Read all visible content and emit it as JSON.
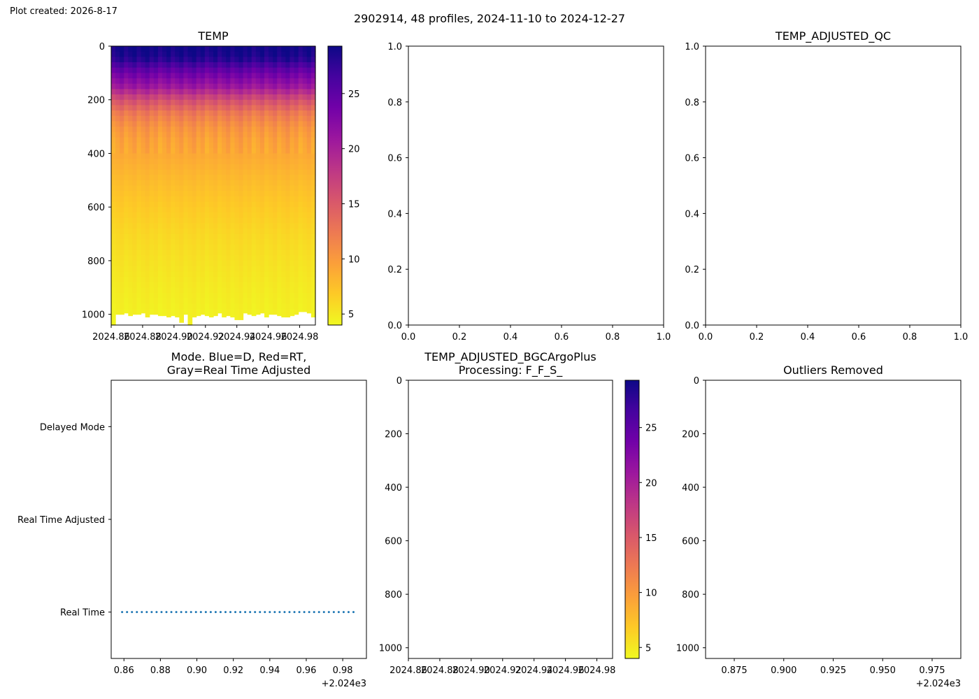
{
  "figure": {
    "created_label": "Plot created: 2026-8-17",
    "suptitle": "2902914, 48 profiles, 2024-11-10 to 2024-12-27"
  },
  "colormap": {
    "name": "plasma_r",
    "stops": [
      "#f0f921",
      "#fdca26",
      "#fb9f3a",
      "#ed7953",
      "#d8576b",
      "#bd3786",
      "#9c179e",
      "#7201a8",
      "#46039f",
      "#0d0887"
    ]
  },
  "chart_data": [
    {
      "id": "temp",
      "type": "heatmap",
      "title": "TEMP",
      "xlim": [
        2024.86,
        2024.99
      ],
      "ylim": [
        1040,
        0
      ],
      "y_inverted": true,
      "x_ticks": [
        "2024.86",
        "2024.88",
        "2024.90",
        "2024.92",
        "2024.94",
        "2024.96",
        "2024.98"
      ],
      "x_tick_values": [
        2024.86,
        2024.88,
        2024.9,
        2024.92,
        2024.94,
        2024.96,
        2024.98
      ],
      "y_ticks": [
        "0",
        "200",
        "400",
        "600",
        "800",
        "1000"
      ],
      "y_tick_values": [
        0,
        200,
        400,
        600,
        800,
        1000
      ],
      "n_profiles": 48,
      "profile_max_depth": [
        1040,
        1000,
        1000,
        995,
        1005,
        1000,
        1000,
        995,
        1010,
        1000,
        1000,
        1005,
        1005,
        1010,
        1005,
        1010,
        1030,
        1000,
        1040,
        1010,
        1005,
        1000,
        1005,
        1010,
        1005,
        995,
        1010,
        1005,
        1010,
        1020,
        1020,
        995,
        1000,
        1005,
        1000,
        995,
        1010,
        1000,
        1000,
        1005,
        1010,
        1010,
        1005,
        1000,
        990,
        990,
        995,
        1010
      ],
      "temperature_profile": {
        "depth": [
          0,
          25,
          50,
          75,
          100,
          150,
          200,
          250,
          300,
          350,
          400,
          500,
          600,
          700,
          800,
          900,
          1000,
          1040
        ],
        "temp": [
          29.2,
          29.0,
          28.0,
          26.0,
          24.0,
          21.0,
          16.0,
          12.5,
          10.5,
          9.5,
          9.0,
          7.8,
          6.8,
          6.0,
          5.4,
          4.9,
          4.5,
          4.4
        ]
      },
      "colorbar": {
        "vmin": 4,
        "vmax": 29.3,
        "ticks": [
          "5",
          "10",
          "15",
          "20",
          "25"
        ],
        "tick_values": [
          5,
          10,
          15,
          20,
          25
        ]
      }
    },
    {
      "id": "empty-top-middle",
      "type": "scatter",
      "title": "",
      "xlim": [
        0,
        1
      ],
      "ylim": [
        0,
        1
      ],
      "x_ticks": [
        "0.0",
        "0.2",
        "0.4",
        "0.6",
        "0.8",
        "1.0"
      ],
      "x_tick_values": [
        0,
        0.2,
        0.4,
        0.6,
        0.8,
        1.0
      ],
      "y_ticks": [
        "0.0",
        "0.2",
        "0.4",
        "0.6",
        "0.8",
        "1.0"
      ],
      "y_tick_values": [
        0,
        0.2,
        0.4,
        0.6,
        0.8,
        1.0
      ]
    },
    {
      "id": "temp-adjusted-qc",
      "type": "scatter",
      "title": "TEMP_ADJUSTED_QC",
      "xlim": [
        0,
        1
      ],
      "ylim": [
        0,
        1
      ],
      "x_ticks": [
        "0.0",
        "0.2",
        "0.4",
        "0.6",
        "0.8",
        "1.0"
      ],
      "x_tick_values": [
        0,
        0.2,
        0.4,
        0.6,
        0.8,
        1.0
      ],
      "y_ticks": [
        "0.0",
        "0.2",
        "0.4",
        "0.6",
        "0.8",
        "1.0"
      ],
      "y_tick_values": [
        0,
        0.2,
        0.4,
        0.6,
        0.8,
        1.0
      ]
    },
    {
      "id": "mode",
      "type": "scatter",
      "title": [
        "Mode. Blue=D, Red=RT,",
        "Gray=Real Time Adjusted"
      ],
      "xlim": [
        0.853,
        0.993
      ],
      "x_offset_label": "+2.024e3",
      "x_ticks": [
        "0.86",
        "0.88",
        "0.90",
        "0.92",
        "0.94",
        "0.96",
        "0.98"
      ],
      "x_tick_values": [
        0.86,
        0.88,
        0.9,
        0.92,
        0.94,
        0.96,
        0.98
      ],
      "ylim": [
        -0.5,
        2.5
      ],
      "y_ticks": [
        "Real Time",
        "Real Time Adjusted",
        "Delayed Mode"
      ],
      "y_tick_values": [
        0,
        1,
        2
      ],
      "series": [
        {
          "color": "#1f77b4",
          "x": [
            0.859,
            0.8617,
            0.8644,
            0.8671,
            0.8698,
            0.8725,
            0.8752,
            0.8779,
            0.8806,
            0.8833,
            0.886,
            0.8887,
            0.8914,
            0.8941,
            0.8968,
            0.8995,
            0.9022,
            0.9049,
            0.9076,
            0.9103,
            0.913,
            0.9157,
            0.9184,
            0.9211,
            0.9238,
            0.9265,
            0.9292,
            0.9319,
            0.9346,
            0.9373,
            0.94,
            0.9427,
            0.9454,
            0.9481,
            0.9508,
            0.9535,
            0.9562,
            0.9589,
            0.9616,
            0.9643,
            0.967,
            0.9697,
            0.9724,
            0.9751,
            0.9778,
            0.9805,
            0.9832,
            0.9859
          ],
          "y": [
            0,
            0,
            0,
            0,
            0,
            0,
            0,
            0,
            0,
            0,
            0,
            0,
            0,
            0,
            0,
            0,
            0,
            0,
            0,
            0,
            0,
            0,
            0,
            0,
            0,
            0,
            0,
            0,
            0,
            0,
            0,
            0,
            0,
            0,
            0,
            0,
            0,
            0,
            0,
            0,
            0,
            0,
            0,
            0,
            0,
            0,
            0,
            0
          ]
        }
      ]
    },
    {
      "id": "temp-adjusted-bgc",
      "type": "heatmap",
      "title": [
        "TEMP_ADJUSTED_BGCArgoPlus",
        "Processing: F_F_S_"
      ],
      "xlim": [
        2024.86,
        2024.99
      ],
      "ylim": [
        1040,
        0
      ],
      "y_inverted": true,
      "x_ticks": [
        "2024.86",
        "2024.88",
        "2024.90",
        "2024.92",
        "2024.94",
        "2024.96",
        "2024.98"
      ],
      "x_tick_values": [
        2024.86,
        2024.88,
        2024.9,
        2024.92,
        2024.94,
        2024.96,
        2024.98
      ],
      "y_ticks": [
        "0",
        "200",
        "400",
        "600",
        "800",
        "1000"
      ],
      "y_tick_values": [
        0,
        200,
        400,
        600,
        800,
        1000
      ],
      "colorbar": {
        "vmin": 4,
        "vmax": 29.3,
        "ticks": [
          "5",
          "10",
          "15",
          "20",
          "25"
        ],
        "tick_values": [
          5,
          10,
          15,
          20,
          25
        ]
      }
    },
    {
      "id": "outliers-removed",
      "type": "scatter",
      "title": "Outliers Removed",
      "xlim": [
        0.8605,
        0.9895
      ],
      "x_offset_label": "+2.024e3",
      "x_ticks": [
        "0.875",
        "0.900",
        "0.925",
        "0.950",
        "0.975"
      ],
      "x_tick_values": [
        0.875,
        0.9,
        0.925,
        0.95,
        0.975
      ],
      "ylim": [
        1040,
        0
      ],
      "y_inverted": true,
      "y_ticks": [
        "0",
        "200",
        "400",
        "600",
        "800",
        "1000"
      ],
      "y_tick_values": [
        0,
        200,
        400,
        600,
        800,
        1000
      ]
    }
  ]
}
